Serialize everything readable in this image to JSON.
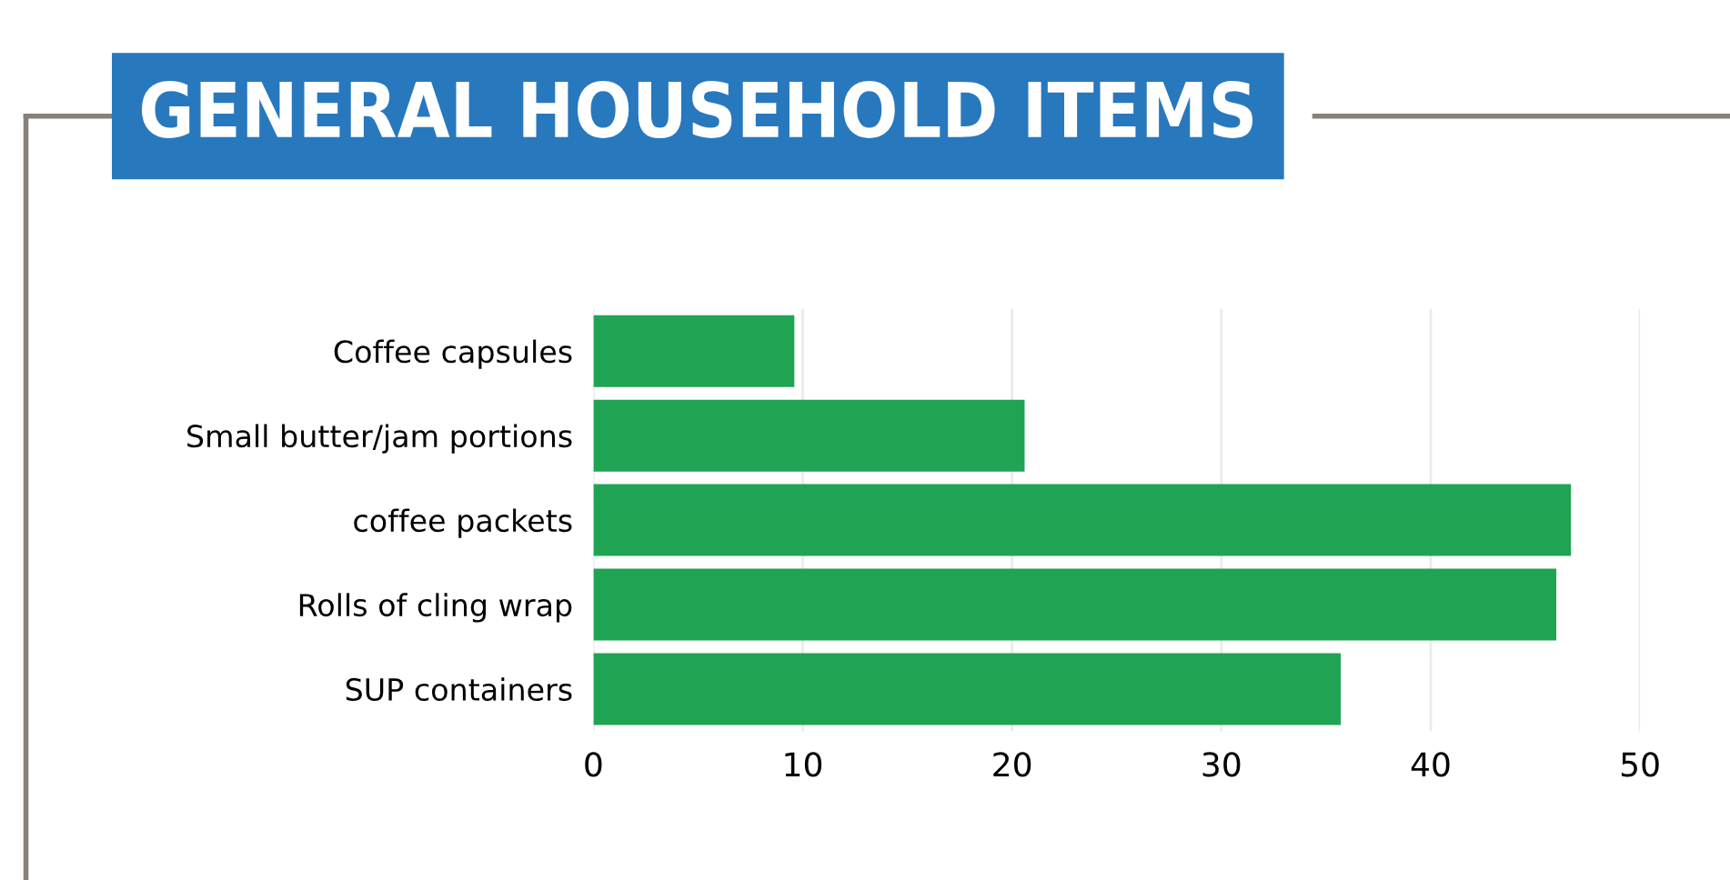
{
  "chart_data": {
    "type": "bar",
    "title": "GENERAL HOUSEHOLD ITEMS",
    "orientation": "horizontal",
    "categories": [
      "Coffee capsules",
      "Small butter/jam portions",
      "coffee packets",
      "Rolls of cling wrap",
      "SUP containers"
    ],
    "values": [
      9.6,
      20.6,
      46.7,
      46,
      35.7
    ],
    "color": "#21a354",
    "xlim": [
      0,
      50
    ],
    "xticks": [
      0,
      10,
      20,
      30,
      40,
      50
    ],
    "grid": "x"
  }
}
